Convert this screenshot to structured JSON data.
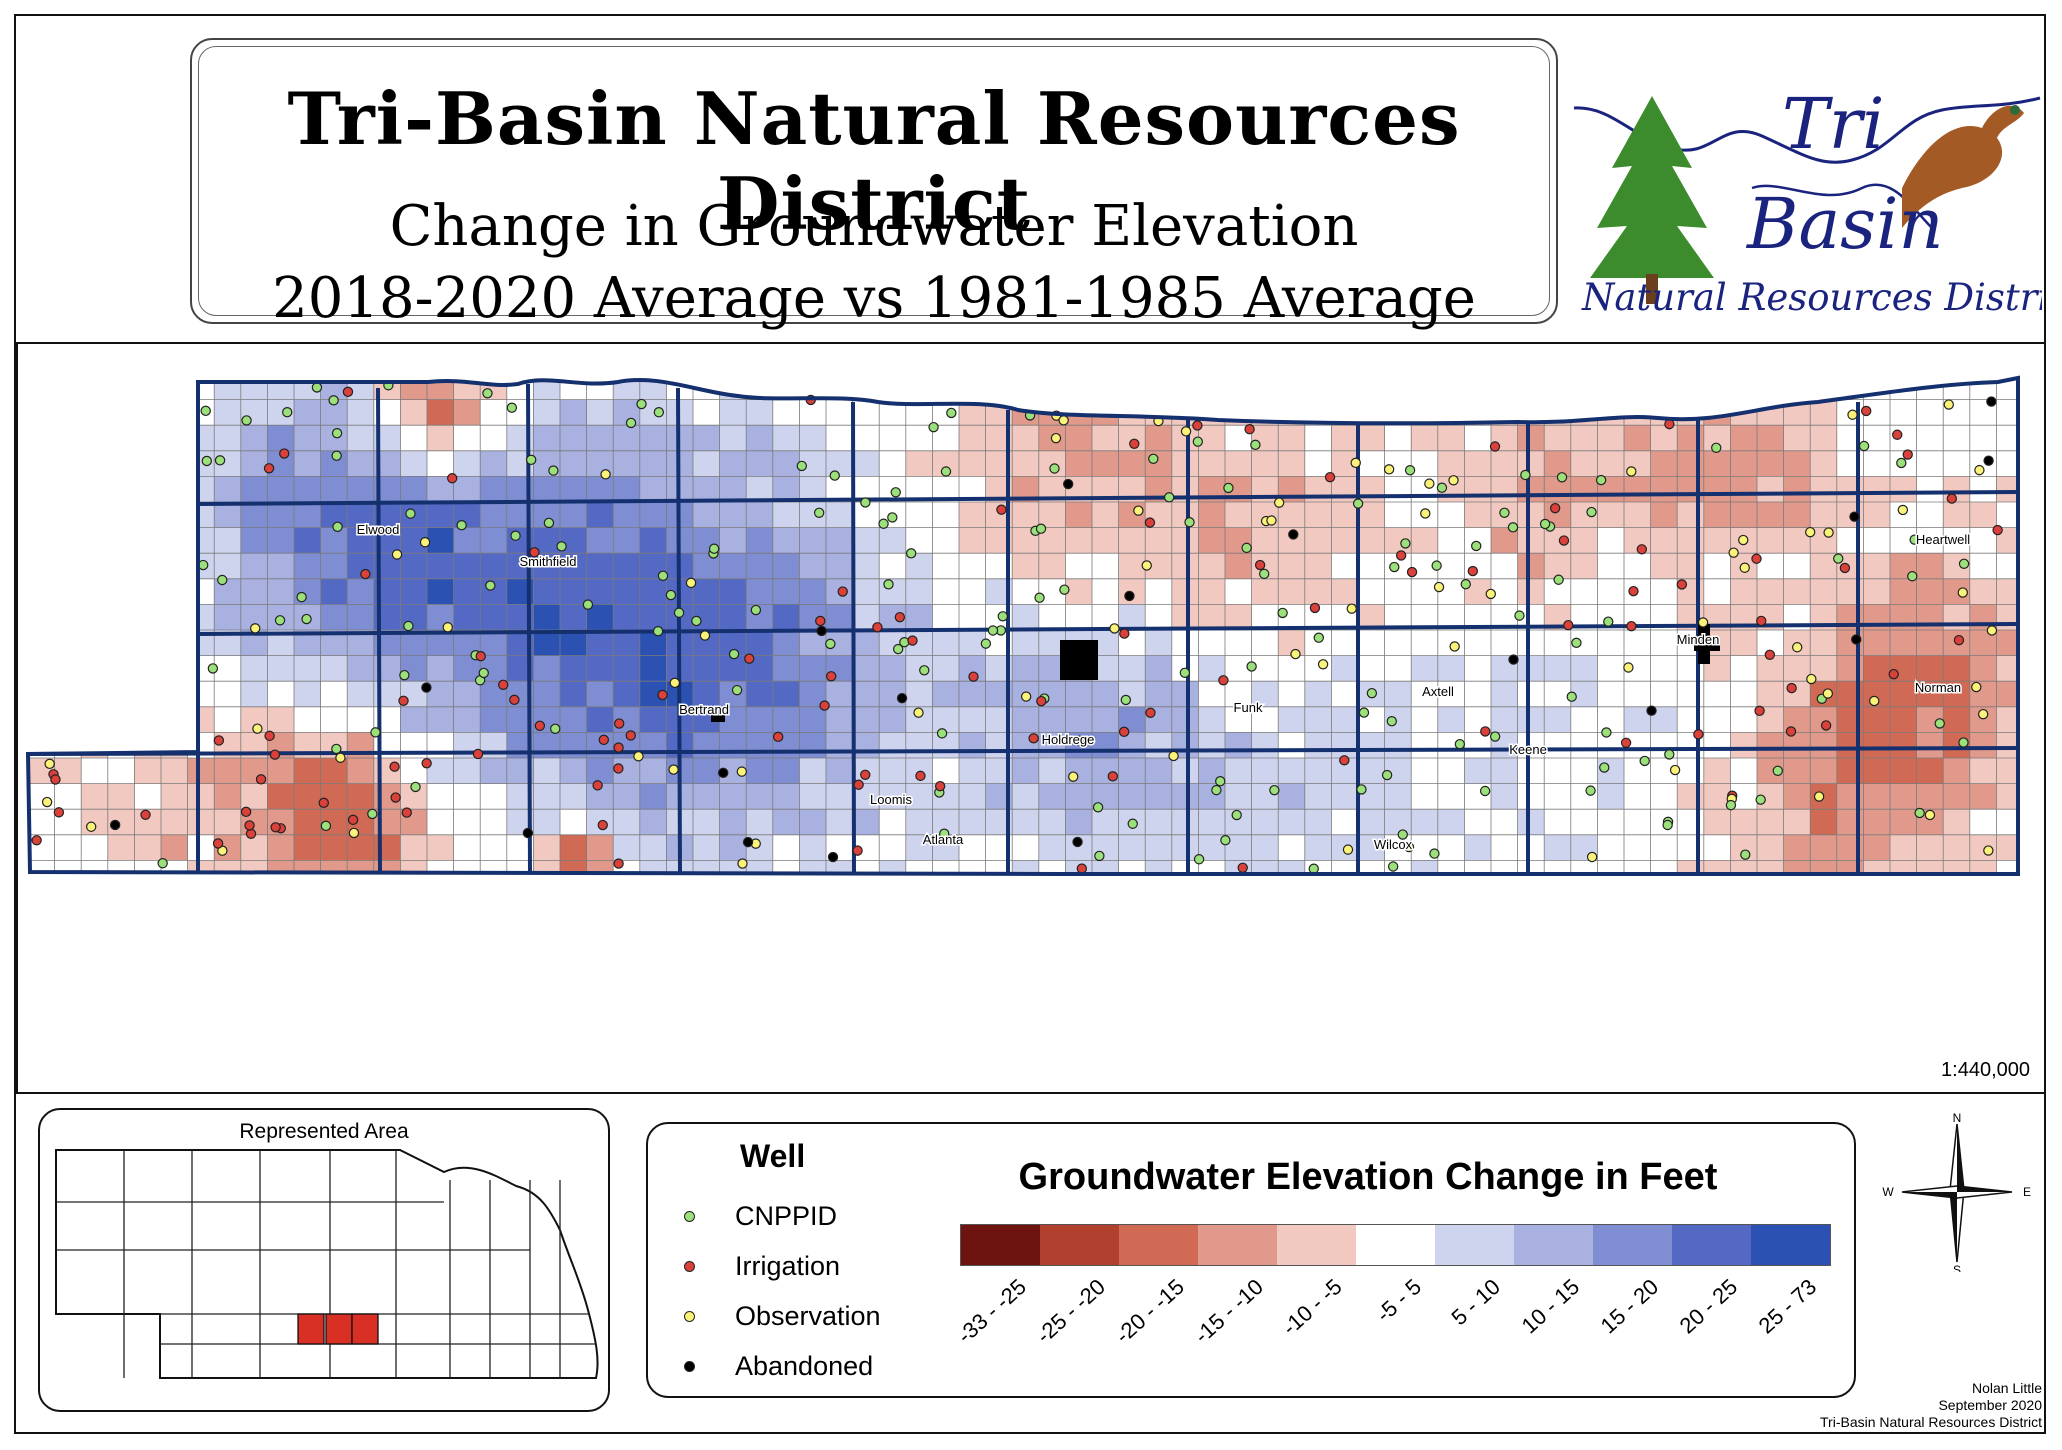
{
  "title": {
    "line1": "Tri-Basin Natural Resources District",
    "line2": "Change in Groundwater Elevation",
    "line3": "2018-2020 Average vs 1981-1985 Average"
  },
  "logo": {
    "word1": "Tri",
    "word2": "Basin",
    "subtitle": "Natural Resources District",
    "color": "#1a237e",
    "icons": [
      "pine-tree-icon",
      "pheasant-icon",
      "river-icon"
    ]
  },
  "map": {
    "scale": "1:440,000",
    "towns": [
      "Elwood",
      "Smithfield",
      "Bertrand",
      "Loomis",
      "Holdrege",
      "Funk",
      "Axtell",
      "Minden",
      "Heartwell",
      "Norman",
      "Keene",
      "Wilcox",
      "Atlanta"
    ],
    "boundary_color": "#14306e"
  },
  "inset": {
    "title": "Represented Area",
    "highlight_color": "#d93025"
  },
  "legend": {
    "well_title": "Well",
    "wells": [
      {
        "label": "CNPPID",
        "color": "#9be07a"
      },
      {
        "label": "Irrigation",
        "color": "#d9413a"
      },
      {
        "label": "Observation",
        "color": "#fbf27a"
      },
      {
        "label": "Abandoned",
        "color": "#000000"
      }
    ],
    "ramp_title": "Groundwater Elevation Change in Feet",
    "classes": [
      {
        "label": "-33 - -25",
        "color": "#6e1410"
      },
      {
        "label": "-25 - -20",
        "color": "#b2402f"
      },
      {
        "label": "-20 - -15",
        "color": "#d06a55"
      },
      {
        "label": "-15 - -10",
        "color": "#e0998a"
      },
      {
        "label": "-10 - -5",
        "color": "#f2c9c1"
      },
      {
        "label": "-5 - 5",
        "color": "#ffffff"
      },
      {
        "label": "5 - 10",
        "color": "#cfd4ee"
      },
      {
        "label": "10 - 15",
        "color": "#a8b1e0"
      },
      {
        "label": "15 - 20",
        "color": "#7f8dd2"
      },
      {
        "label": "20 - 25",
        "color": "#5469c3"
      },
      {
        "label": "25 - 73",
        "color": "#2b52b3"
      }
    ]
  },
  "compass": {
    "n": "N",
    "s": "S",
    "e": "E",
    "w": "W"
  },
  "credit": {
    "author": "Nolan Little",
    "date": "September 2020",
    "org": "Tri-Basin Natural Resources District"
  }
}
